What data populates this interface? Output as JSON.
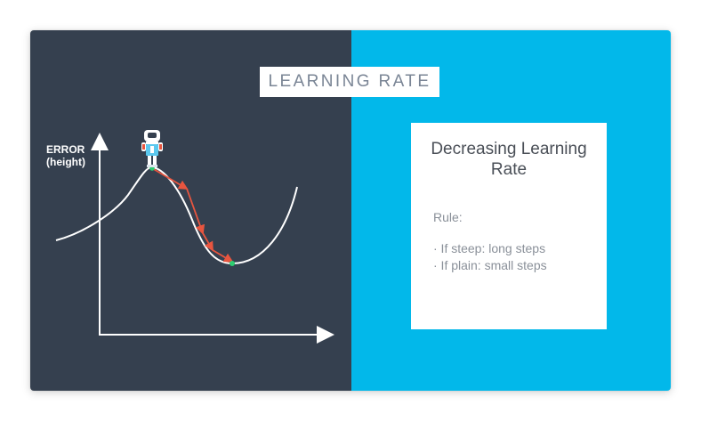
{
  "slide": {
    "title": "LEARNING RATE",
    "colors": {
      "left_panel": "#35404f",
      "right_panel": "#02b8ea",
      "arrow": "#e8553f",
      "dot": "#2ecc71"
    }
  },
  "diagram": {
    "y_axis_label_line1": "ERROR",
    "y_axis_label_line2": "(height)",
    "icons": [
      "robot-icon"
    ]
  },
  "card": {
    "heading": "Decreasing Learning Rate",
    "rule_label": "Rule:",
    "items": [
      "· If steep: long steps",
      "· If plain: small steps"
    ]
  }
}
